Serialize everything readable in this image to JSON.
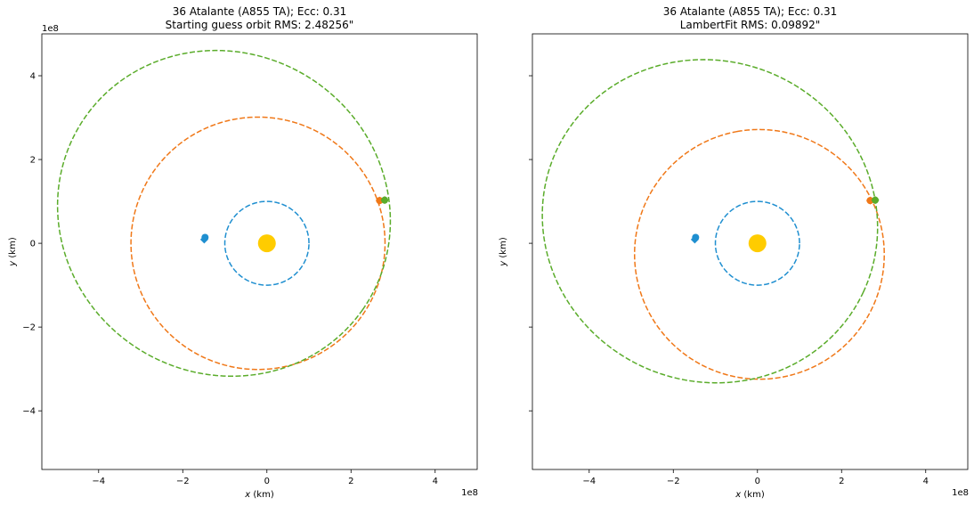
{
  "colors": {
    "earth": "#1f8fd0",
    "starting_orbit": "#f07818",
    "object_orbit": "#5aac2a",
    "sun": "#ffcc00",
    "axes": "#000000"
  },
  "chart_data": [
    {
      "type": "line",
      "title": [
        "36 Atalante (A855 TA); Ecc: 0.31",
        "Starting guess orbit RMS: 2.48256\""
      ],
      "xlabel": "x (km)",
      "ylabel": "y (km)",
      "x_offset_text": "1e8",
      "y_offset_text": "1e8",
      "xlim": [
        -5.35,
        5.0
      ],
      "ylim": [
        -5.4,
        5.0
      ],
      "xticks": [
        -4,
        -2,
        0,
        2,
        4
      ],
      "yticks": [
        -4,
        -2,
        0,
        2,
        4
      ],
      "xtick_labels": [
        "−4",
        "−2",
        "0",
        "2",
        "4"
      ],
      "ytick_labels": [
        "−4",
        "−2",
        "0",
        "2",
        "4"
      ],
      "show_yticklabels": true,
      "grid": false,
      "sun": {
        "x": 0,
        "y": 0
      },
      "series": [
        {
          "color": "earth",
          "orbit": {
            "a": 1.0,
            "e": 0.0,
            "omega_deg": 0
          },
          "start_marker": {
            "x": -1.47,
            "y": 0.14
          },
          "end_marker": {
            "x": -1.49,
            "y": 0.09
          }
        },
        {
          "color": "starting_orbit",
          "orbit": {
            "a": 3.02,
            "e": 0.07,
            "omega_deg": 0
          },
          "start_marker": {
            "x": 2.68,
            "y": 1.02
          },
          "end_marker": {
            "x": 2.68,
            "y": 1.02
          }
        },
        {
          "color": "object_orbit",
          "orbit": {
            "a": 4.02,
            "e": 0.31,
            "omega_deg": -35
          },
          "start_marker": {
            "x": 2.8,
            "y": 1.03
          },
          "end_marker": {
            "x": 2.8,
            "y": 1.03
          }
        }
      ]
    },
    {
      "type": "line",
      "title": [
        "36 Atalante (A855 TA); Ecc: 0.31",
        "LambertFit RMS: 0.09892\""
      ],
      "xlabel": "x (km)",
      "ylabel": "y (km)",
      "x_offset_text": "1e8",
      "y_offset_text": "",
      "xlim": [
        -5.35,
        5.0
      ],
      "ylim": [
        -5.4,
        5.0
      ],
      "xticks": [
        -4,
        -2,
        0,
        2,
        4
      ],
      "yticks": [
        -4,
        -2,
        0,
        2,
        4
      ],
      "xtick_labels": [
        "−4",
        "−2",
        "0",
        "2",
        "4"
      ],
      "ytick_labels": [
        "",
        "",
        "",
        "",
        ""
      ],
      "show_yticklabels": false,
      "grid": false,
      "sun": {
        "x": 0,
        "y": 0
      },
      "series": [
        {
          "color": "earth",
          "orbit": {
            "a": 1.0,
            "e": 0.0,
            "omega_deg": 0
          },
          "start_marker": {
            "x": -1.47,
            "y": 0.14
          },
          "end_marker": {
            "x": -1.49,
            "y": 0.09
          }
        },
        {
          "color": "starting_orbit",
          "orbit": {
            "a": 2.98,
            "e": 0.09,
            "omega_deg": 100
          },
          "start_marker": {
            "x": 2.68,
            "y": 1.02
          },
          "end_marker": {
            "x": 2.68,
            "y": 1.02
          }
        },
        {
          "color": "object_orbit",
          "orbit": {
            "a": 4.02,
            "e": 0.31,
            "omega_deg": -25
          },
          "start_marker": {
            "x": 2.8,
            "y": 1.03
          },
          "end_marker": {
            "x": 2.8,
            "y": 1.03
          }
        }
      ]
    }
  ]
}
